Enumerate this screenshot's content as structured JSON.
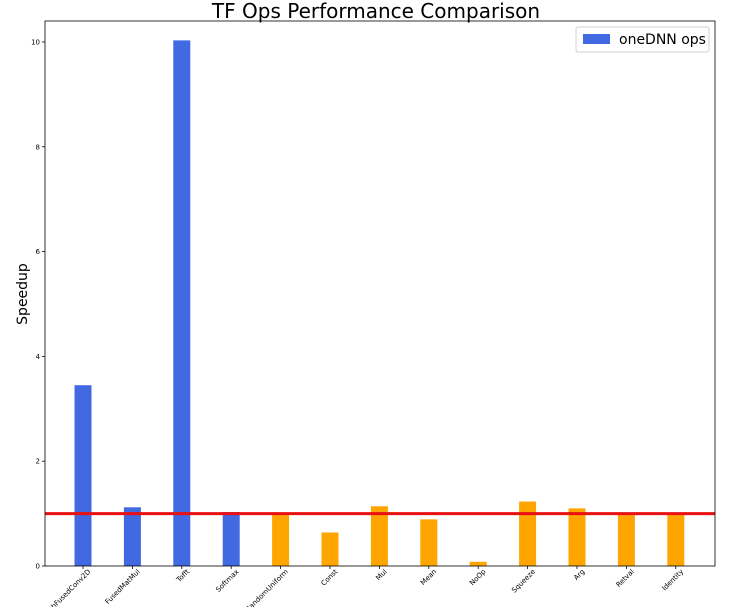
{
  "chart_data": {
    "type": "bar",
    "title": "TF Ops Performance Comparison",
    "xlabel": "",
    "ylabel": "Speedup",
    "ylim": [
      0,
      10.4
    ],
    "yticks": [
      0,
      2,
      4,
      6,
      8,
      10
    ],
    "grid": false,
    "legend_placement": "top-right",
    "categories": [
      "PadWithFusedConv2D",
      "FusedMatMul",
      "Tofft",
      "Softmax",
      "RandomUniform",
      "Const",
      "Mul",
      "Mean",
      "NoOp",
      "Squeeze",
      "Arg",
      "Retval",
      "Identity"
    ],
    "values": [
      3.45,
      1.12,
      10.03,
      1.03,
      1.0,
      0.64,
      1.14,
      0.89,
      0.08,
      1.23,
      1.1,
      1.01,
      1.0
    ],
    "bar_groups": [
      "onednn",
      "onednn",
      "onednn",
      "onednn",
      "other",
      "other",
      "other",
      "other",
      "other",
      "other",
      "other",
      "other",
      "other"
    ],
    "series": [
      {
        "name": "oneDNN ops",
        "color": "#4169e1"
      }
    ],
    "other_color": "#ffa500",
    "reference_line": {
      "y": 1.0,
      "color": "#e81010"
    }
  }
}
